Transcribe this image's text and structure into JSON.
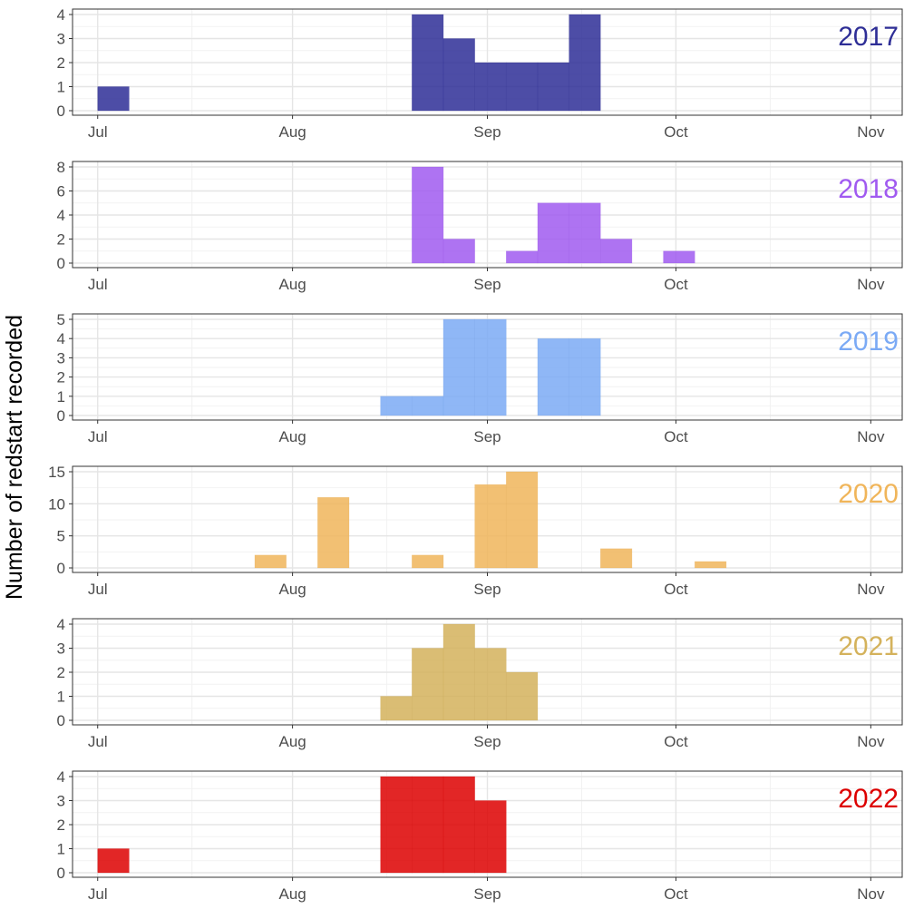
{
  "figure": {
    "ylabel": "Number of redstart recorded",
    "x_tick_labels": [
      "Jul",
      "Aug",
      "Sep",
      "Oct",
      "Nov"
    ]
  },
  "chart_data": [
    {
      "type": "bar",
      "panel": "2017",
      "color": "#2E2E96",
      "bin_width_days": 5,
      "x": [
        "2017-07-01",
        "2017-08-20",
        "2017-08-25",
        "2017-08-30",
        "2017-09-04",
        "2017-09-09",
        "2017-09-14"
      ],
      "values": [
        1,
        4,
        3,
        2,
        2,
        2,
        4
      ],
      "yticks": [
        0,
        1,
        2,
        3,
        4
      ],
      "ylim": [
        0,
        4
      ],
      "xlim": [
        "2017-06-27",
        "2017-11-06"
      ],
      "grid": true
    },
    {
      "type": "bar",
      "panel": "2018",
      "color": "#A05AF0",
      "bin_width_days": 5,
      "x": [
        "2018-08-20",
        "2018-08-25",
        "2018-09-04",
        "2018-09-09",
        "2018-09-14",
        "2018-09-19",
        "2018-09-29"
      ],
      "values": [
        8,
        2,
        1,
        5,
        5,
        2,
        1
      ],
      "yticks": [
        0,
        2,
        4,
        6,
        8
      ],
      "ylim": [
        0,
        8
      ],
      "xlim": [
        "2018-06-27",
        "2018-11-06"
      ],
      "grid": true
    },
    {
      "type": "bar",
      "panel": "2019",
      "color": "#7BAAF5",
      "bin_width_days": 5,
      "x": [
        "2019-08-15",
        "2019-08-20",
        "2019-08-25",
        "2019-08-30",
        "2019-09-09",
        "2019-09-14"
      ],
      "values": [
        1,
        1,
        5,
        5,
        4,
        4
      ],
      "yticks": [
        0,
        1,
        2,
        3,
        4,
        5
      ],
      "ylim": [
        0,
        5
      ],
      "xlim": [
        "2019-06-27",
        "2019-11-06"
      ],
      "grid": true
    },
    {
      "type": "bar",
      "panel": "2020",
      "color": "#F0B55A",
      "bin_width_days": 5,
      "x": [
        "2020-07-26",
        "2020-08-05",
        "2020-08-20",
        "2020-08-30",
        "2020-09-04",
        "2020-09-19",
        "2020-10-04"
      ],
      "values": [
        2,
        11,
        2,
        13,
        15,
        3,
        1
      ],
      "yticks": [
        0,
        5,
        10,
        15
      ],
      "ylim": [
        0,
        15
      ],
      "xlim": [
        "2020-06-27",
        "2020-11-06"
      ],
      "grid": true
    },
    {
      "type": "bar",
      "panel": "2021",
      "color": "#D4B25C",
      "bin_width_days": 5,
      "x": [
        "2021-08-15",
        "2021-08-20",
        "2021-08-25",
        "2021-08-30",
        "2021-09-04"
      ],
      "values": [
        1,
        3,
        4,
        3,
        2
      ],
      "yticks": [
        0,
        1,
        2,
        3,
        4
      ],
      "ylim": [
        0,
        4
      ],
      "xlim": [
        "2021-06-27",
        "2021-11-06"
      ],
      "grid": true
    },
    {
      "type": "bar",
      "panel": "2022",
      "color": "#DD0000",
      "bin_width_days": 5,
      "x": [
        "2022-07-01",
        "2022-08-15",
        "2022-08-20",
        "2022-08-25",
        "2022-08-30"
      ],
      "values": [
        1,
        4,
        4,
        4,
        3
      ],
      "yticks": [
        0,
        1,
        2,
        3,
        4
      ],
      "ylim": [
        0,
        4
      ],
      "xlim": [
        "2022-06-27",
        "2022-11-06"
      ],
      "grid": true
    }
  ]
}
